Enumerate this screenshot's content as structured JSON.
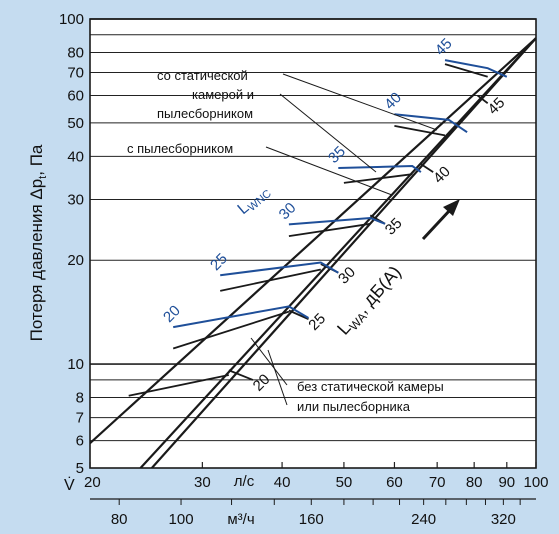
{
  "colors": {
    "background": "#c5dcf0",
    "plot_background": "#ffffff",
    "black_lines": "#1a1a1a",
    "nc_lines": "#1f4f99",
    "nc_labels": "#1f4f99"
  },
  "chart_data": {
    "type": "line",
    "ylabel": "Потеря давления Δp",
    "ylabel_sub": "t",
    "ylabel_unit": ", Па",
    "xsymbol": "V̇",
    "x_scale": "log",
    "y_scale": "log",
    "xlim": [
      20,
      100
    ],
    "ylim": [
      5,
      100
    ],
    "x_ticks": [
      20,
      30,
      40,
      50,
      60,
      70,
      80,
      90,
      100
    ],
    "x_unit": "л/с",
    "y_ticks": [
      5,
      6,
      7,
      8,
      10,
      20,
      30,
      40,
      50,
      60,
      70,
      80,
      100
    ],
    "x2_unit": "м³/ч",
    "x2_ticks": [
      80,
      100,
      160,
      240,
      320
    ],
    "grid": true,
    "labels": {
      "lwnc_main": "L",
      "lwnc_sub": "WNC",
      "lwa_main": "L",
      "lwa_sub": "WA",
      "lwa_unit": ", дБ(А)",
      "annot_static_1": "со статической",
      "annot_static_2": "камерой и",
      "annot_static_3": "пылесборником",
      "annot_dust": "с пылесборником",
      "annot_none_1": "без статической камеры",
      "annot_none_2": "или пылесборника"
    },
    "series": [
      {
        "name": "со статической камерой и пылесборником",
        "x": [
          20,
          100
        ],
        "y": [
          5.9,
          88
        ]
      },
      {
        "name": "с пылесборником",
        "x": [
          24,
          100
        ],
        "y": [
          5,
          88
        ]
      },
      {
        "name": "без статической камеры или пылесборника",
        "x": [
          25,
          100
        ],
        "y": [
          5,
          88
        ]
      }
    ],
    "lwa_ticks": [
      {
        "label": "20",
        "x": [
          33,
          36
        ],
        "y": [
          9.6,
          9
        ]
      },
      {
        "label": "25",
        "x": [
          41,
          44
        ],
        "y": [
          14.3,
          13.5
        ]
      },
      {
        "label": "30",
        "x": [
          46,
          49
        ],
        "y": [
          19.5,
          18.4
        ]
      },
      {
        "label": "35",
        "x": [
          55,
          58
        ],
        "y": [
          27,
          25.5
        ]
      },
      {
        "label": "40",
        "x": [
          66,
          69
        ],
        "y": [
          38,
          36
        ]
      },
      {
        "label": "45",
        "x": [
          81,
          84
        ],
        "y": [
          60,
          57
        ]
      }
    ],
    "nc_curves": [
      {
        "label": "20",
        "points": [
          [
            27,
            12.8
          ],
          [
            41,
            14.7
          ],
          [
            44,
            13.6
          ]
        ]
      },
      {
        "label": "25",
        "points": [
          [
            32,
            18.1
          ],
          [
            46,
            19.7
          ],
          [
            49,
            18.4
          ]
        ]
      },
      {
        "label": "30",
        "points": [
          [
            41,
            25.4
          ],
          [
            55,
            26.5
          ],
          [
            58,
            25.5
          ]
        ]
      },
      {
        "label": "35",
        "points": [
          [
            49,
            37
          ],
          [
            64,
            37.5
          ],
          [
            66,
            36
          ]
        ]
      },
      {
        "label": "40",
        "points": [
          [
            60,
            53
          ],
          [
            73,
            51
          ],
          [
            78,
            47
          ]
        ]
      },
      {
        "label": "45",
        "points": [
          [
            72,
            76
          ],
          [
            84,
            72
          ],
          [
            90,
            68
          ]
        ]
      }
    ],
    "black_ticks": [
      {
        "points": [
          [
            23,
            8.1
          ],
          [
            33,
            9.3
          ]
        ]
      },
      {
        "points": [
          [
            27,
            11.1
          ],
          [
            41,
            14.2
          ]
        ]
      },
      {
        "points": [
          [
            32,
            16.3
          ],
          [
            46,
            18.8
          ]
        ]
      },
      {
        "points": [
          [
            41,
            23.5
          ],
          [
            55,
            25.5
          ]
        ]
      },
      {
        "points": [
          [
            50,
            33.5
          ],
          [
            64,
            35.5
          ]
        ]
      },
      {
        "points": [
          [
            60,
            49
          ],
          [
            72,
            46
          ]
        ]
      },
      {
        "points": [
          [
            72,
            74
          ],
          [
            84,
            68
          ]
        ]
      }
    ]
  }
}
